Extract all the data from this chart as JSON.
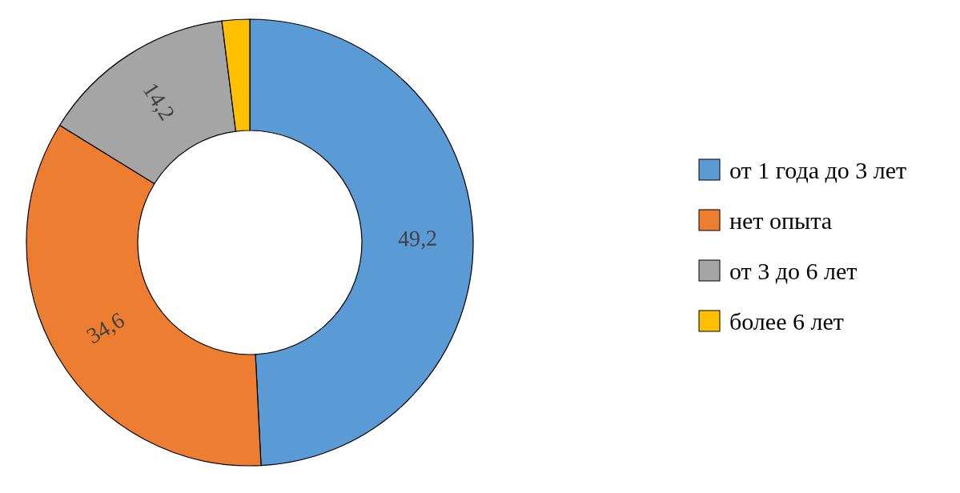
{
  "chart_data": {
    "type": "donut",
    "categories": [
      "от 1 года до 3 лет",
      "нет опыта",
      "от 3 до 6 лет",
      "более 6 лет"
    ],
    "values": [
      49.2,
      34.6,
      14.2,
      2.0
    ],
    "colors": [
      "#5b9bd5",
      "#ed7d31",
      "#a5a5a5",
      "#ffc000"
    ],
    "value_labels": [
      "49,2",
      "34,6",
      "14,2",
      null
    ],
    "legend": "right"
  }
}
